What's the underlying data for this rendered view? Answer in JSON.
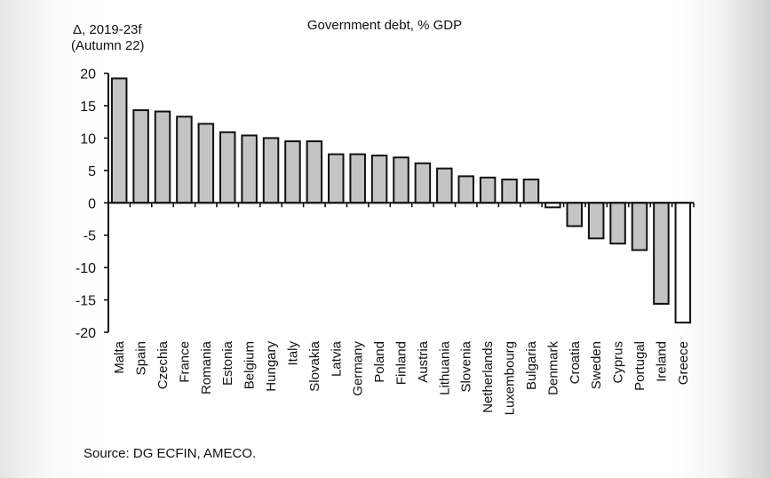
{
  "chart_data": {
    "type": "bar",
    "title": "Government debt, % GDP",
    "ylabel": "Δ, 2019-23f\n(Autumn 22)",
    "ylabel_lines": [
      "Δ, 2019-23f",
      "(Autumn 22)"
    ],
    "xlabel": "",
    "ylim": [
      -20,
      20
    ],
    "yticks": [
      20,
      15,
      10,
      5,
      0,
      -5,
      -10,
      -15,
      -20
    ],
    "grid": false,
    "legend": "none",
    "source": "Source: DG ECFIN, AMECO.",
    "categories": [
      "Malta",
      "Spain",
      "Czechia",
      "France",
      "Romania",
      "Estonia",
      "Belgium",
      "Hungary",
      "Italy",
      "Slovakia",
      "Latvia",
      "Germany",
      "Poland",
      "Finland",
      "Austria",
      "Lithuania",
      "Slovenia",
      "Netherlands",
      "Luxembourg",
      "Bulgaria",
      "Denmark",
      "Croatia",
      "Sweden",
      "Cyprus",
      "Portugal",
      "Ireland",
      "Greece"
    ],
    "values": [
      19.2,
      14.3,
      14.1,
      13.3,
      12.2,
      10.9,
      10.4,
      10.0,
      9.5,
      9.5,
      7.5,
      7.5,
      7.3,
      7.0,
      6.1,
      5.3,
      4.1,
      3.9,
      3.6,
      3.6,
      -0.7,
      -3.6,
      -5.5,
      -6.3,
      -7.3,
      -15.6,
      -18.5
    ],
    "bar_fill": [
      "#c4c4c4",
      "#c4c4c4",
      "#c4c4c4",
      "#c4c4c4",
      "#c4c4c4",
      "#c4c4c4",
      "#c4c4c4",
      "#c4c4c4",
      "#c4c4c4",
      "#c4c4c4",
      "#c4c4c4",
      "#c4c4c4",
      "#c4c4c4",
      "#c4c4c4",
      "#c4c4c4",
      "#c4c4c4",
      "#c4c4c4",
      "#c4c4c4",
      "#c4c4c4",
      "#c4c4c4",
      "#ffffff",
      "#c4c4c4",
      "#c4c4c4",
      "#c4c4c4",
      "#c4c4c4",
      "#c4c4c4",
      "#ffffff"
    ],
    "bar_stroke": "#111111"
  }
}
